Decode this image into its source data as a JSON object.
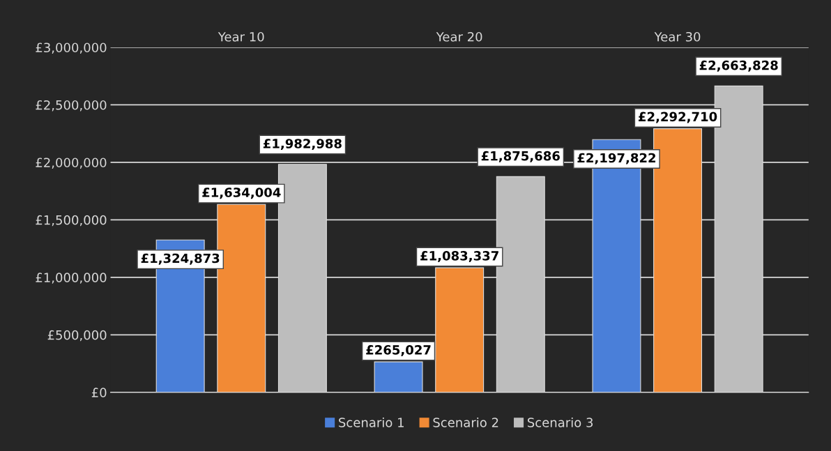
{
  "chart_data": {
    "type": "bar",
    "categories": [
      "Year 10",
      "Year 20",
      "Year 30"
    ],
    "series": [
      {
        "name": "Scenario 1",
        "color": "#4a7fd9",
        "values": [
          1324873,
          265027,
          2197822
        ]
      },
      {
        "name": "Scenario 2",
        "color": "#f28a35",
        "values": [
          1634004,
          1083337,
          2292710
        ]
      },
      {
        "name": "Scenario 3",
        "color": "#bdbdbd",
        "values": [
          1982988,
          1875686,
          2663828
        ]
      }
    ],
    "ylim": [
      0,
      3000000
    ],
    "yticks": [
      {
        "value": 0,
        "label": "£0"
      },
      {
        "value": 500000,
        "label": "£500,000"
      },
      {
        "value": 1000000,
        "label": "£1,000,000"
      },
      {
        "value": 1500000,
        "label": "£1,500,000"
      },
      {
        "value": 2000000,
        "label": "£2,000,000"
      },
      {
        "value": 2500000,
        "label": "£2,500,000"
      },
      {
        "value": 3000000,
        "label": "£3,000,000"
      }
    ],
    "grid": "y",
    "legend": "bottom",
    "value_labels": [
      [
        "£1,324,873",
        "£265,027",
        "£2,197,822"
      ],
      [
        "£1,634,004",
        "£1,083,337",
        "£2,292,710"
      ],
      [
        "£1,982,988",
        "£1,875,686",
        "£2,663,828"
      ]
    ]
  }
}
